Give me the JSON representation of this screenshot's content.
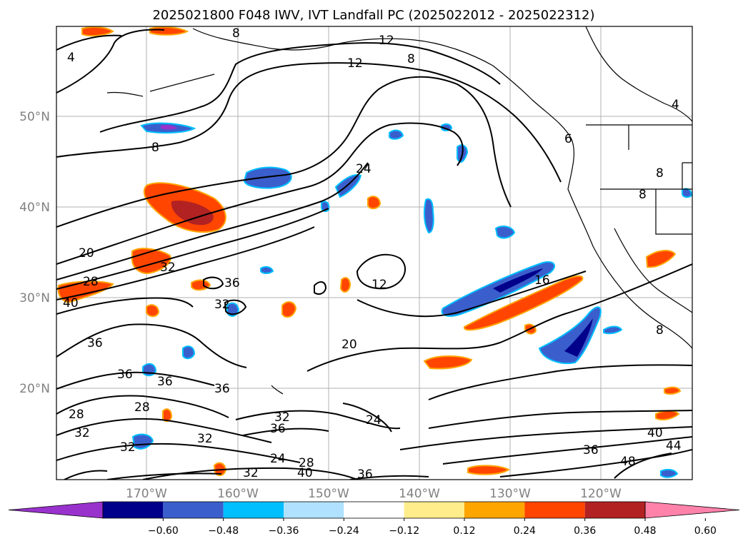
{
  "title": "2025021800 F048 IWV, IVT Landfall PC (2025022012 - 2025022312)",
  "lat_labels": [
    "50°N",
    "40°N",
    "30°N",
    "20°N"
  ],
  "lon_labels": [
    "170°W",
    "160°W",
    "150°W",
    "140°W",
    "130°W",
    "120°W"
  ],
  "colorbar": {
    "ticks": [
      "−0.60",
      "−0.48",
      "−0.36",
      "−0.24",
      "−0.12",
      "0.12",
      "0.24",
      "0.36",
      "0.48",
      "0.60"
    ],
    "colors": [
      "#9932CC",
      "#00008B",
      "#3A5FCD",
      "#00BFFF",
      "#B0E2FF",
      "#FFFFFF",
      "#FFEC8B",
      "#FFA500",
      "#FF4500",
      "#B22222",
      "#FF82AB"
    ]
  },
  "contour_labels": [
    "8",
    "12",
    "12",
    "8",
    "4",
    "4",
    "8",
    "20",
    "24",
    "28",
    "32",
    "36",
    "40",
    "32",
    "36",
    "36",
    "36",
    "28",
    "32",
    "32",
    "28",
    "32",
    "36",
    "32",
    "36",
    "12",
    "16",
    "20",
    "24",
    "24",
    "28",
    "40",
    "36",
    "32",
    "36",
    "40",
    "44",
    "48",
    "8",
    "8",
    "8",
    "6"
  ],
  "shading_colors": {
    "dark_red": "#B22222",
    "red": "#FF4500",
    "orange": "#FFA500",
    "yellow": "#FFEC8B",
    "dark_blue": "#00008B",
    "blue": "#3A5FCD",
    "cyan": "#00BFFF",
    "light_blue": "#B0E2FF",
    "purple": "#9932CC"
  }
}
